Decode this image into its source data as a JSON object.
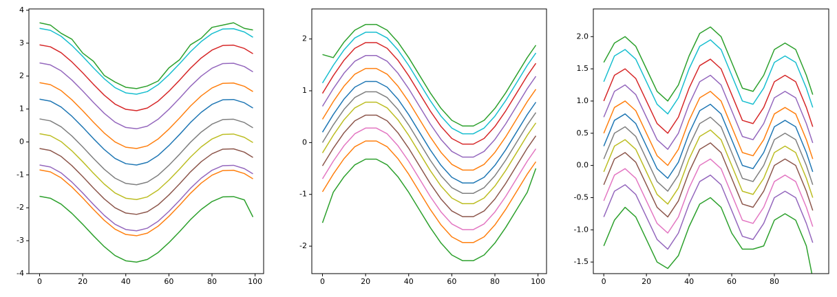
{
  "chart_data": [
    {
      "type": "line",
      "x": [
        0,
        5,
        10,
        15,
        20,
        25,
        30,
        35,
        40,
        45,
        50,
        55,
        60,
        65,
        70,
        75,
        80,
        85,
        90,
        95,
        99
      ],
      "xlim": [
        -4.95,
        103.95
      ],
      "xticks": [
        0,
        20,
        40,
        60,
        80,
        100
      ],
      "ylim": [
        -4.0,
        4.04
      ],
      "yticks": [
        -4,
        -3,
        -2,
        -1,
        0,
        1,
        2,
        3,
        4
      ],
      "series": [
        {
          "color": "#2ca02c",
          "values": [
            3.62,
            3.55,
            3.3,
            3.12,
            2.7,
            2.45,
            2.02,
            1.82,
            1.66,
            1.62,
            1.7,
            1.85,
            2.25,
            2.5,
            2.95,
            3.15,
            3.48,
            3.55,
            3.62,
            3.45,
            3.4
          ]
        },
        {
          "color": "#17becf",
          "values": [
            3.45,
            3.39,
            3.21,
            2.93,
            2.6,
            2.25,
            1.92,
            1.65,
            1.49,
            1.45,
            1.53,
            1.74,
            2.04,
            2.38,
            2.74,
            3.05,
            3.29,
            3.43,
            3.44,
            3.34,
            3.18
          ]
        },
        {
          "color": "#d62728",
          "values": [
            2.95,
            2.89,
            2.71,
            2.43,
            2.1,
            1.75,
            1.42,
            1.15,
            0.99,
            0.95,
            1.03,
            1.24,
            1.54,
            1.88,
            2.24,
            2.55,
            2.79,
            2.93,
            2.94,
            2.84,
            2.68
          ]
        },
        {
          "color": "#9467bd",
          "values": [
            2.4,
            2.34,
            2.16,
            1.88,
            1.55,
            1.2,
            0.87,
            0.6,
            0.44,
            0.4,
            0.48,
            0.69,
            0.99,
            1.33,
            1.69,
            2.0,
            2.24,
            2.38,
            2.39,
            2.29,
            2.13
          ]
        },
        {
          "color": "#ff7f0e",
          "values": [
            1.8,
            1.74,
            1.56,
            1.28,
            0.95,
            0.6,
            0.27,
            0,
            -0.16,
            -0.2,
            -0.12,
            0.09,
            0.39,
            0.73,
            1.09,
            1.4,
            1.64,
            1.78,
            1.79,
            1.69,
            1.53
          ]
        },
        {
          "color": "#1f77b4",
          "values": [
            1.3,
            1.24,
            1.06,
            0.78,
            0.45,
            0.1,
            -0.23,
            -0.5,
            -0.66,
            -0.7,
            -0.62,
            -0.41,
            -0.11,
            0.23,
            0.59,
            0.9,
            1.14,
            1.28,
            1.29,
            1.19,
            1.03
          ]
        },
        {
          "color": "#7f7f7f",
          "values": [
            0.7,
            0.64,
            0.46,
            0.18,
            -0.15,
            -0.5,
            -0.83,
            -1.1,
            -1.26,
            -1.3,
            -1.22,
            -1.01,
            -0.71,
            -0.37,
            -0.01,
            0.3,
            0.54,
            0.68,
            0.69,
            0.59,
            0.43
          ]
        },
        {
          "color": "#bcbd22",
          "values": [
            0.25,
            0.19,
            0.01,
            -0.27,
            -0.6,
            -0.95,
            -1.28,
            -1.55,
            -1.71,
            -1.75,
            -1.67,
            -1.46,
            -1.16,
            -0.82,
            -0.46,
            -0.15,
            0.09,
            0.23,
            0.24,
            0.14,
            -0.02
          ]
        },
        {
          "color": "#8c564b",
          "values": [
            -0.2,
            -0.26,
            -0.44,
            -0.72,
            -1.05,
            -1.4,
            -1.73,
            -2,
            -2.16,
            -2.2,
            -2.12,
            -1.91,
            -1.61,
            -1.27,
            -0.91,
            -0.6,
            -0.36,
            -0.22,
            -0.21,
            -0.31,
            -0.47
          ]
        },
        {
          "color": "#9467bd",
          "values": [
            -0.7,
            -0.76,
            -0.94,
            -1.22,
            -1.55,
            -1.9,
            -2.23,
            -2.5,
            -2.66,
            -2.7,
            -2.62,
            -2.41,
            -2.11,
            -1.77,
            -1.41,
            -1.1,
            -0.86,
            -0.72,
            -0.71,
            -0.81,
            -0.97
          ]
        },
        {
          "color": "#ff7f0e",
          "values": [
            -0.85,
            -0.91,
            -1.09,
            -1.37,
            -1.7,
            -2.05,
            -2.38,
            -2.65,
            -2.81,
            -2.85,
            -2.77,
            -2.56,
            -2.26,
            -1.92,
            -1.56,
            -1.25,
            -1.01,
            -0.87,
            -0.86,
            -0.96,
            -1.12
          ]
        },
        {
          "color": "#2ca02c",
          "values": [
            -1.65,
            -1.71,
            -1.89,
            -2.17,
            -2.5,
            -2.85,
            -3.18,
            -3.45,
            -3.61,
            -3.65,
            -3.57,
            -3.36,
            -3.06,
            -2.72,
            -2.36,
            -2.05,
            -1.81,
            -1.67,
            -1.66,
            -1.76,
            -2.28
          ]
        }
      ]
    },
    {
      "type": "line",
      "x": [
        0,
        5,
        10,
        15,
        20,
        25,
        30,
        35,
        40,
        45,
        50,
        55,
        60,
        65,
        70,
        75,
        80,
        85,
        90,
        95,
        99
      ],
      "xlim": [
        -4.95,
        103.95
      ],
      "xticks": [
        0,
        20,
        40,
        60,
        80,
        100
      ],
      "ylim": [
        -2.53,
        2.58
      ],
      "yticks": [
        -2,
        -1,
        0,
        1,
        2
      ],
      "series": [
        {
          "color": "#2ca02c",
          "values": [
            1.7,
            1.64,
            1.94,
            2.17,
            2.28,
            2.28,
            2.17,
            1.94,
            1.64,
            1.3,
            0.96,
            0.66,
            0.43,
            0.32,
            0.32,
            0.43,
            0.66,
            0.96,
            1.3,
            1.64,
            1.88
          ]
        },
        {
          "color": "#17becf",
          "values": [
            1.15,
            1.49,
            1.79,
            2.02,
            2.13,
            2.13,
            2.02,
            1.79,
            1.49,
            1.15,
            0.81,
            0.51,
            0.28,
            0.17,
            0.17,
            0.28,
            0.51,
            0.81,
            1.15,
            1.49,
            1.73
          ]
        },
        {
          "color": "#d62728",
          "values": [
            0.95,
            1.29,
            1.59,
            1.82,
            1.93,
            1.93,
            1.82,
            1.59,
            1.29,
            0.95,
            0.61,
            0.31,
            0.08,
            -0.03,
            -0.03,
            0.08,
            0.31,
            0.61,
            0.95,
            1.29,
            1.53
          ]
        },
        {
          "color": "#9467bd",
          "values": [
            0.7,
            1.04,
            1.34,
            1.57,
            1.68,
            1.68,
            1.57,
            1.34,
            1.04,
            0.7,
            0.36,
            0.06,
            -0.17,
            -0.28,
            -0.28,
            -0.17,
            0.06,
            0.36,
            0.7,
            1.04,
            1.28
          ]
        },
        {
          "color": "#ff7f0e",
          "values": [
            0.45,
            0.79,
            1.09,
            1.32,
            1.43,
            1.43,
            1.32,
            1.09,
            0.79,
            0.45,
            0.11,
            -0.19,
            -0.42,
            -0.53,
            -0.53,
            -0.42,
            -0.19,
            0.11,
            0.45,
            0.79,
            1.03
          ]
        },
        {
          "color": "#1f77b4",
          "values": [
            0.2,
            0.54,
            0.84,
            1.07,
            1.18,
            1.18,
            1.07,
            0.84,
            0.54,
            0.2,
            -0.14,
            -0.44,
            -0.67,
            -0.78,
            -0.78,
            -0.67,
            -0.44,
            -0.14,
            0.2,
            0.54,
            0.78
          ]
        },
        {
          "color": "#7f7f7f",
          "values": [
            0,
            0.34,
            0.64,
            0.87,
            0.98,
            0.98,
            0.87,
            0.64,
            0.34,
            0,
            -0.34,
            -0.64,
            -0.87,
            -0.98,
            -0.98,
            -0.87,
            -0.64,
            -0.34,
            0,
            0.34,
            0.58
          ]
        },
        {
          "color": "#bcbd22",
          "values": [
            -0.2,
            0.14,
            0.44,
            0.67,
            0.78,
            0.78,
            0.67,
            0.44,
            0.14,
            -0.2,
            -0.54,
            -0.84,
            -1.07,
            -1.18,
            -1.18,
            -1.07,
            -0.84,
            -0.54,
            -0.2,
            0.14,
            0.38
          ]
        },
        {
          "color": "#8c564b",
          "values": [
            -0.45,
            -0.11,
            0.19,
            0.42,
            0.53,
            0.53,
            0.42,
            0.19,
            -0.11,
            -0.45,
            -0.79,
            -1.09,
            -1.32,
            -1.43,
            -1.43,
            -1.32,
            -1.09,
            -0.79,
            -0.45,
            -0.11,
            0.13
          ]
        },
        {
          "color": "#e377c2",
          "values": [
            -0.7,
            -0.36,
            -0.06,
            0.17,
            0.28,
            0.28,
            0.17,
            -0.06,
            -0.36,
            -0.7,
            -1.04,
            -1.34,
            -1.57,
            -1.68,
            -1.68,
            -1.57,
            -1.34,
            -1.04,
            -0.7,
            -0.36,
            -0.12
          ]
        },
        {
          "color": "#ff7f0e",
          "values": [
            -0.95,
            -0.61,
            -0.31,
            -0.08,
            0.03,
            0.03,
            -0.08,
            -0.31,
            -0.61,
            -0.95,
            -1.29,
            -1.59,
            -1.82,
            -1.93,
            -1.93,
            -1.82,
            -1.59,
            -1.29,
            -0.95,
            -0.61,
            -0.37
          ]
        },
        {
          "color": "#2ca02c",
          "values": [
            -1.55,
            -0.96,
            -0.66,
            -0.43,
            -0.32,
            -0.32,
            -0.43,
            -0.66,
            -0.96,
            -1.3,
            -1.64,
            -1.94,
            -2.17,
            -2.28,
            -2.28,
            -2.17,
            -1.94,
            -1.64,
            -1.3,
            -0.96,
            -0.5
          ]
        }
      ]
    },
    {
      "type": "line",
      "x": [
        0,
        5,
        10,
        15,
        20,
        25,
        30,
        35,
        40,
        45,
        50,
        55,
        60,
        65,
        70,
        75,
        80,
        85,
        90,
        95,
        98
      ],
      "xlim": [
        -4.9,
        105.5
      ],
      "xticks": [
        0,
        20,
        40,
        60,
        80
      ],
      "ylim": [
        -1.68,
        2.43
      ],
      "yticks": [
        {
          "value": -1.5,
          "label": "-1.5"
        },
        {
          "value": -1,
          "label": "-1.0"
        },
        {
          "value": -0.5,
          "label": "-0.5"
        },
        {
          "value": 0,
          "label": "0.0"
        },
        {
          "value": 0.5,
          "label": "0.5"
        },
        {
          "value": 1,
          "label": "1.0"
        },
        {
          "value": 1.5,
          "label": "1.5"
        },
        {
          "value": 2,
          "label": "2.0"
        }
      ],
      "series": [
        {
          "color": "#2ca02c",
          "values": [
            1.6,
            1.9,
            2.0,
            1.85,
            1.5,
            1.15,
            1.0,
            1.25,
            1.7,
            2.05,
            2.15,
            2.0,
            1.6,
            1.2,
            1.15,
            1.4,
            1.8,
            1.9,
            1.8,
            1.4,
            1.1
          ]
        },
        {
          "color": "#17becf",
          "values": [
            1.3,
            1.7,
            1.8,
            1.65,
            1.3,
            0.95,
            0.8,
            1.05,
            1.5,
            1.85,
            1.95,
            1.8,
            1.4,
            1.0,
            0.95,
            1.2,
            1.6,
            1.7,
            1.6,
            1.2,
            0.9
          ]
        },
        {
          "color": "#d62728",
          "values": [
            1.0,
            1.4,
            1.5,
            1.35,
            1.0,
            0.65,
            0.5,
            0.75,
            1.2,
            1.55,
            1.65,
            1.5,
            1.1,
            0.7,
            0.65,
            0.9,
            1.3,
            1.4,
            1.3,
            0.9,
            0.6
          ]
        },
        {
          "color": "#9467bd",
          "values": [
            0.75,
            1.15,
            1.25,
            1.1,
            0.75,
            0.4,
            0.25,
            0.5,
            0.95,
            1.3,
            1.4,
            1.25,
            0.85,
            0.45,
            0.4,
            0.65,
            1.05,
            1.15,
            1.05,
            0.65,
            0.35
          ]
        },
        {
          "color": "#ff7f0e",
          "values": [
            0.5,
            0.9,
            1.0,
            0.85,
            0.5,
            0.15,
            0,
            0.25,
            0.7,
            1.05,
            1.15,
            1.0,
            0.6,
            0.2,
            0.15,
            0.4,
            0.8,
            0.9,
            0.8,
            0.4,
            0.1
          ]
        },
        {
          "color": "#1f77b4",
          "values": [
            0.3,
            0.7,
            0.8,
            0.65,
            0.3,
            -0.05,
            -0.2,
            0.05,
            0.5,
            0.85,
            0.95,
            0.8,
            0.4,
            0,
            -0.05,
            0.2,
            0.6,
            0.7,
            0.6,
            0.2,
            -0.1
          ]
        },
        {
          "color": "#7f7f7f",
          "values": [
            0.1,
            0.5,
            0.6,
            0.45,
            0.1,
            -0.25,
            -0.4,
            -0.15,
            0.3,
            0.65,
            0.75,
            0.6,
            0.2,
            -0.2,
            -0.25,
            0,
            0.4,
            0.5,
            0.4,
            0,
            -0.3
          ]
        },
        {
          "color": "#bcbd22",
          "values": [
            -0.1,
            0.3,
            0.4,
            0.25,
            -0.1,
            -0.45,
            -0.6,
            -0.35,
            0.1,
            0.45,
            0.55,
            0.4,
            0,
            -0.4,
            -0.45,
            -0.2,
            0.2,
            0.3,
            0.2,
            -0.2,
            -0.5
          ]
        },
        {
          "color": "#8c564b",
          "values": [
            -0.3,
            0.1,
            0.2,
            0.05,
            -0.3,
            -0.65,
            -0.8,
            -0.55,
            -0.1,
            0.25,
            0.35,
            0.2,
            -0.2,
            -0.6,
            -0.65,
            -0.4,
            0,
            0.1,
            0,
            -0.4,
            -0.7
          ]
        },
        {
          "color": "#e377c2",
          "values": [
            -0.55,
            -0.15,
            -0.05,
            -0.2,
            -0.55,
            -0.9,
            -1.05,
            -0.8,
            -0.35,
            0,
            0.1,
            -0.05,
            -0.45,
            -0.85,
            -0.9,
            -0.65,
            -0.25,
            -0.15,
            -0.25,
            -0.65,
            -0.95
          ]
        },
        {
          "color": "#9467bd",
          "values": [
            -0.8,
            -0.4,
            -0.3,
            -0.45,
            -0.8,
            -1.15,
            -1.3,
            -1.05,
            -0.6,
            -0.25,
            -0.15,
            -0.3,
            -0.7,
            -1.1,
            -1.15,
            -0.9,
            -0.5,
            -0.4,
            -0.5,
            -0.9,
            -1.2
          ]
        },
        {
          "color": "#2ca02c",
          "values": [
            -1.25,
            -0.85,
            -0.65,
            -0.8,
            -1.15,
            -1.5,
            -1.6,
            -1.4,
            -0.95,
            -0.6,
            -0.5,
            -0.65,
            -1.05,
            -1.3,
            -1.3,
            -1.25,
            -0.85,
            -0.75,
            -0.85,
            -1.25,
            -1.75
          ]
        }
      ]
    }
  ]
}
